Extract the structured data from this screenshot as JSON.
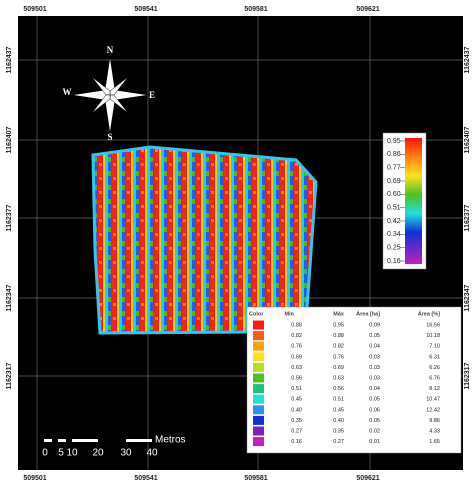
{
  "x_labels": [
    "509501",
    "509541",
    "509581",
    "509621"
  ],
  "y_labels": [
    "1162437",
    "1162407",
    "1162377",
    "1162347",
    "1162317"
  ],
  "compass": {
    "north": "N",
    "south": "S",
    "east": "E",
    "west": "W"
  },
  "colorbar_labels": [
    "0.95",
    "0.86",
    "0.77",
    "0.69",
    "0.60",
    "0.51",
    "0.42",
    "0.34",
    "0.25",
    "0.16"
  ],
  "table": {
    "header": [
      "Color",
      "Min",
      "Máx",
      "Área [ha]",
      "Área [%]"
    ],
    "rows": [
      {
        "color": "#ff1a10",
        "cells": [
          "0.88",
          "0.95",
          "0.09",
          "16.56"
        ]
      },
      {
        "color": "#ff5a10",
        "cells": [
          "0.82",
          "0.88",
          "0.05",
          "10.18"
        ]
      },
      {
        "color": "#ffa010",
        "cells": [
          "0.76",
          "0.82",
          "0.04",
          "7.10"
        ]
      },
      {
        "color": "#ffe020",
        "cells": [
          "0.69",
          "0.76",
          "0.03",
          "6.31"
        ]
      },
      {
        "color": "#b8e020",
        "cells": [
          "0.63",
          "0.69",
          "0.03",
          "6.26"
        ]
      },
      {
        "color": "#50c020",
        "cells": [
          "0.56",
          "0.63",
          "0.03",
          "6.76"
        ]
      },
      {
        "color": "#20c080",
        "cells": [
          "0.51",
          "0.56",
          "0.04",
          "8.12"
        ]
      },
      {
        "color": "#20e0e0",
        "cells": [
          "0.45",
          "0.51",
          "0.05",
          "10.47"
        ]
      },
      {
        "color": "#3090f0",
        "cells": [
          "0.40",
          "0.45",
          "0.06",
          "12.42"
        ]
      },
      {
        "color": "#1030d0",
        "cells": [
          "0.35",
          "0.40",
          "0.05",
          "9.86"
        ]
      },
      {
        "color": "#8020c0",
        "cells": [
          "0.27",
          "0.35",
          "0.02",
          "4.33"
        ]
      },
      {
        "color": "#c020c0",
        "cells": [
          "0.16",
          "0.27",
          "0.01",
          "1.65"
        ]
      }
    ]
  },
  "scale_bar": {
    "labels": [
      "0",
      "5",
      "10",
      "20",
      "30",
      "40"
    ],
    "unit": "Metros"
  }
}
